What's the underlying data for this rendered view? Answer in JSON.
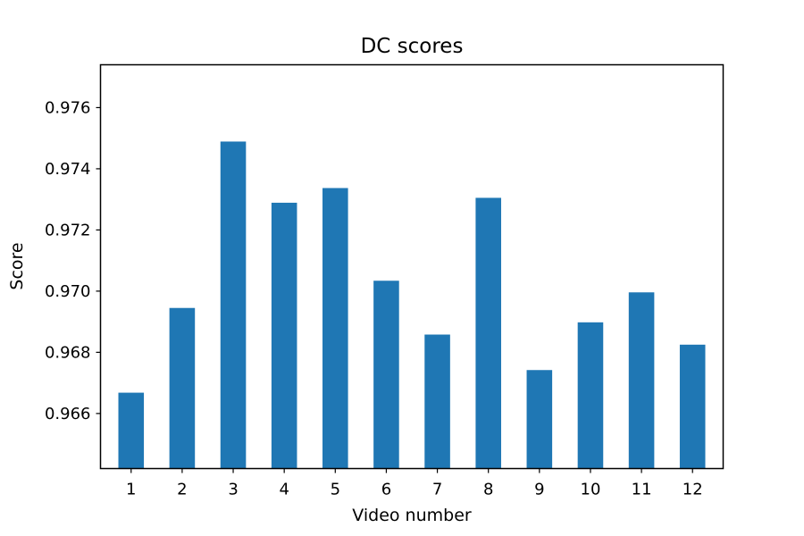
{
  "chart_data": {
    "type": "bar",
    "title": "DC scores",
    "xlabel": "Video number",
    "ylabel": "Score",
    "categories": [
      "1",
      "2",
      "3",
      "4",
      "5",
      "6",
      "7",
      "8",
      "9",
      "10",
      "11",
      "12"
    ],
    "values": [
      0.96668,
      0.96945,
      0.97489,
      0.97289,
      0.97337,
      0.97034,
      0.96858,
      0.97305,
      0.96742,
      0.96898,
      0.96996,
      0.96825
    ],
    "ylim": [
      0.9642,
      0.9774
    ],
    "yticks": [
      0.966,
      0.968,
      0.97,
      0.972,
      0.974,
      0.976
    ],
    "ytick_labels": [
      "0.966",
      "0.968",
      "0.970",
      "0.972",
      "0.974",
      "0.976"
    ],
    "bar_color": "#1f77b4",
    "grid": false
  }
}
